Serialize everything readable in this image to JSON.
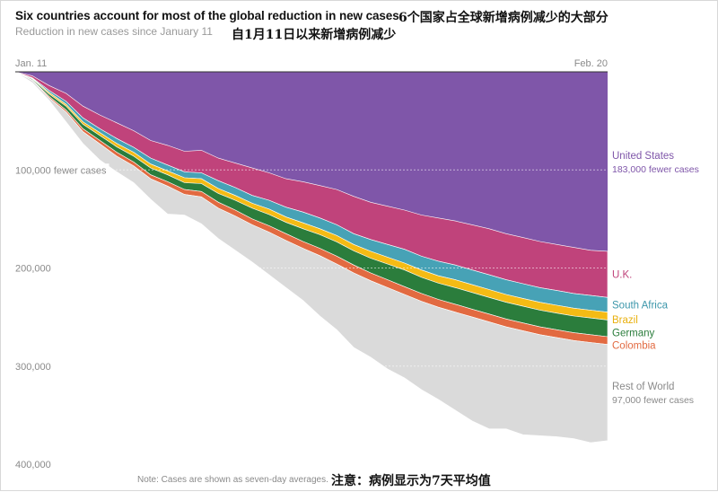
{
  "title": "Six countries account for most of the global reduction in new cases",
  "subtitle": "Reduction in new cases since January 11",
  "title_cn": "6个国家占全球新增病例减少的大部分",
  "subtitle_cn": "自1月11日以来新增病例减少",
  "note": "Note: Cases are shown as seven-day averages.",
  "note_cn": "注意：病例显示为7天平均值",
  "chart_data": {
    "type": "area",
    "x_start_label": "Jan. 11",
    "x_end_label": "Feb. 20",
    "ylim": [
      0,
      400000
    ],
    "y_ticks": [
      {
        "value": 100000,
        "label": "100,000 fewer cases"
      },
      {
        "value": 200000,
        "label": "200,000"
      },
      {
        "value": 300000,
        "label": "300,000"
      },
      {
        "value": 400000,
        "label": "400,000"
      }
    ],
    "stack_order_top_to_bottom": [
      "United States",
      "U.K.",
      "South Africa",
      "Brazil",
      "Germany",
      "Colombia",
      "Rest of World"
    ],
    "cumulative_boundaries": [
      {
        "name": "United States",
        "color": "#7f56a9",
        "label": "United States",
        "sublabel": "183,000 fewer cases",
        "values": [
          0,
          4000,
          14000,
          22000,
          35000,
          44000,
          52000,
          60000,
          70000,
          75000,
          81000,
          80000,
          88000,
          93000,
          98000,
          103000,
          109000,
          112000,
          116000,
          120000,
          127000,
          133000,
          137000,
          141000,
          146000,
          149000,
          152000,
          156000,
          160000,
          165000,
          169000,
          173000,
          176000,
          179000,
          182000,
          183000
        ]
      },
      {
        "name": "U.K.",
        "color": "#c0437b",
        "label": "U.K.",
        "sublabel": "",
        "values": [
          0,
          6000,
          19000,
          30000,
          47000,
          58000,
          68000,
          77000,
          88000,
          95000,
          102000,
          103000,
          111000,
          118000,
          126000,
          131000,
          138000,
          143000,
          149000,
          156000,
          165000,
          171000,
          176000,
          181000,
          188000,
          193000,
          197000,
          202000,
          207000,
          212000,
          216000,
          220000,
          223000,
          226000,
          228000,
          230000
        ]
      },
      {
        "name": "South Africa",
        "color": "#47a2b6",
        "label": "South Africa",
        "sublabel": "",
        "values": [
          0,
          6700,
          21000,
          33000,
          51000,
          62000,
          73000,
          82000,
          94000,
          101000,
          108000,
          109000,
          119000,
          126000,
          134000,
          140000,
          148000,
          154000,
          160000,
          167000,
          176000,
          183000,
          189000,
          195000,
          202000,
          208000,
          212000,
          217000,
          222000,
          227000,
          231000,
          235000,
          238000,
          241000,
          243000,
          245000
        ]
      },
      {
        "name": "Brazil",
        "color": "#f4bb15",
        "label": "Brazil",
        "sublabel": "",
        "values": [
          0,
          7300,
          22500,
          35000,
          53500,
          65000,
          76500,
          86000,
          98000,
          105000,
          113000,
          114000,
          124000,
          131000,
          139000,
          145500,
          153500,
          160000,
          166000,
          173500,
          182500,
          190000,
          196000,
          202000,
          209500,
          215500,
          220000,
          225000,
          230000,
          235000,
          239000,
          243000,
          246000,
          249000,
          251000,
          253000
        ]
      },
      {
        "name": "Germany",
        "color": "#2b7d3c",
        "label": "Germany",
        "sublabel": "",
        "values": [
          0,
          8300,
          25000,
          39000,
          58000,
          70000,
          82000,
          92000,
          105000,
          112000,
          120000,
          122000,
          133000,
          141000,
          150000,
          157000,
          165000,
          173000,
          180000,
          188000,
          197000,
          205000,
          212000,
          219000,
          226000,
          232000,
          237000,
          242000,
          247000,
          252000,
          256000,
          260000,
          263000,
          266000,
          268000,
          270000
        ]
      },
      {
        "name": "Colombia",
        "color": "#e26a41",
        "label": "Colombia",
        "sublabel": "",
        "values": [
          0,
          8800,
          26500,
          41000,
          61000,
          73500,
          86000,
          96000,
          109000,
          116500,
          125000,
          127500,
          139000,
          147000,
          156000,
          163500,
          172000,
          180000,
          187500,
          196000,
          205000,
          213000,
          220000,
          227000,
          234000,
          240000,
          245000,
          250000,
          255000,
          260000,
          264000,
          268000,
          271000,
          274000,
          276000,
          278000
        ]
      },
      {
        "name": "Rest of World",
        "color": "#dadada",
        "label": "Rest of World",
        "sublabel": "97,000 fewer cases",
        "values": [
          0,
          11000,
          29000,
          51000,
          73000,
          90000,
          102000,
          113000,
          130000,
          145000,
          146000,
          155000,
          170000,
          182000,
          194000,
          207000,
          220000,
          233000,
          249000,
          263000,
          281000,
          291000,
          303000,
          312000,
          324000,
          334000,
          345000,
          356000,
          364000,
          364000,
          370000,
          371000,
          372000,
          374000,
          378000,
          376000
        ]
      }
    ]
  }
}
